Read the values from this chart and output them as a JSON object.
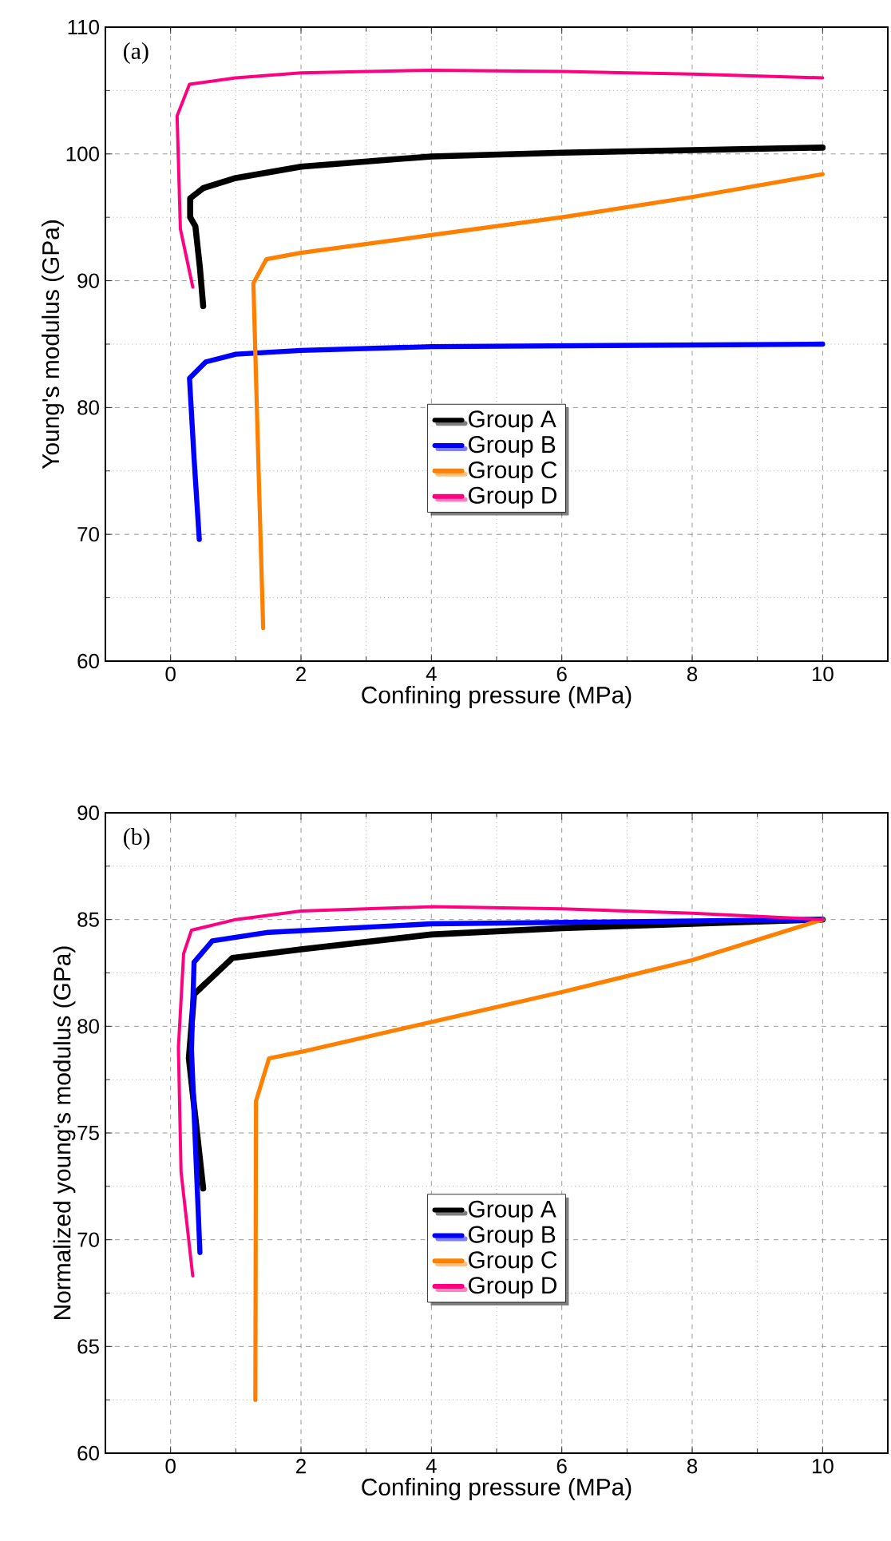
{
  "chart_data": [
    {
      "type": "line",
      "xlabel": "Confining pressure (MPa)",
      "ylabel": "Young's modulus (GPa)",
      "annotations": [
        "(a)"
      ],
      "xlim": [
        -1,
        11
      ],
      "ylim": [
        60,
        110
      ],
      "xticks": [
        0,
        2,
        4,
        6,
        8,
        10
      ],
      "yticks": [
        60,
        70,
        80,
        90,
        100,
        110
      ],
      "grid": true,
      "legend": "center",
      "line_style": "solid",
      "series": [
        {
          "name": "Group A",
          "color": "#000000",
          "x": [
            0.5,
            0.45,
            0.38,
            0.3,
            0.3,
            0.5,
            1,
            2,
            4,
            6,
            8,
            10
          ],
          "values": [
            88,
            91,
            94.3,
            95,
            96.5,
            97.3,
            98.1,
            99,
            99.8,
            100.1,
            100.3,
            100.5
          ]
        },
        {
          "name": "Group B",
          "color": "#0000ff",
          "x": [
            0.44,
            0.36,
            0.29,
            0.54,
            1,
            2,
            4,
            10
          ],
          "values": [
            69.6,
            76,
            82.3,
            83.6,
            84.2,
            84.5,
            84.8,
            85
          ]
        },
        {
          "name": "Group C",
          "color": "#ff8000",
          "x": [
            1.42,
            1.35,
            1.27,
            1.47,
            2,
            4,
            6,
            8,
            10
          ],
          "values": [
            62.6,
            75,
            89.8,
            91.7,
            92.2,
            93.6,
            95,
            96.6,
            98.4
          ]
        },
        {
          "name": "Group D",
          "color": "#ff0080",
          "x": [
            0.34,
            0.15,
            0.1,
            0.29,
            1,
            2,
            4,
            6,
            8,
            10
          ],
          "values": [
            89.5,
            94.1,
            103,
            105.5,
            106,
            106.4,
            106.6,
            106.5,
            106.3,
            106
          ]
        }
      ]
    },
    {
      "type": "line",
      "xlabel": "Confining pressure (MPa)",
      "ylabel": "Normalized young's modulus (GPa)",
      "annotations": [
        "(b)"
      ],
      "xlim": [
        -1,
        11
      ],
      "ylim": [
        60,
        90
      ],
      "xticks": [
        0,
        2,
        4,
        6,
        8,
        10
      ],
      "yticks": [
        60,
        65,
        70,
        75,
        80,
        85,
        90
      ],
      "grid": true,
      "legend": "center",
      "line_style": "solid",
      "series": [
        {
          "name": "Group A",
          "color": "#000000",
          "x": [
            0.5,
            0.28,
            0.36,
            0.95,
            2,
            4,
            6,
            8,
            10
          ],
          "values": [
            72.4,
            78.5,
            81.5,
            83.2,
            83.6,
            84.3,
            84.6,
            84.8,
            85
          ]
        },
        {
          "name": "Group B",
          "color": "#0000ff",
          "x": [
            0.45,
            0.32,
            0.36,
            0.64,
            1.5,
            4,
            10
          ],
          "values": [
            69.4,
            78.9,
            83,
            84,
            84.4,
            84.8,
            85
          ]
        },
        {
          "name": "Group C",
          "color": "#ff8000",
          "x": [
            1.3,
            1.31,
            1.51,
            2,
            4,
            6,
            8,
            10
          ],
          "values": [
            62.5,
            76.5,
            78.5,
            78.8,
            80.2,
            81.6,
            83.1,
            85
          ]
        },
        {
          "name": "Group D",
          "color": "#ff0080",
          "x": [
            0.34,
            0.16,
            0.12,
            0.2,
            0.32,
            1,
            2,
            4,
            6,
            8,
            10
          ],
          "values": [
            68.3,
            73.2,
            79,
            83.4,
            84.5,
            85,
            85.4,
            85.6,
            85.5,
            85.3,
            85
          ]
        }
      ]
    }
  ]
}
